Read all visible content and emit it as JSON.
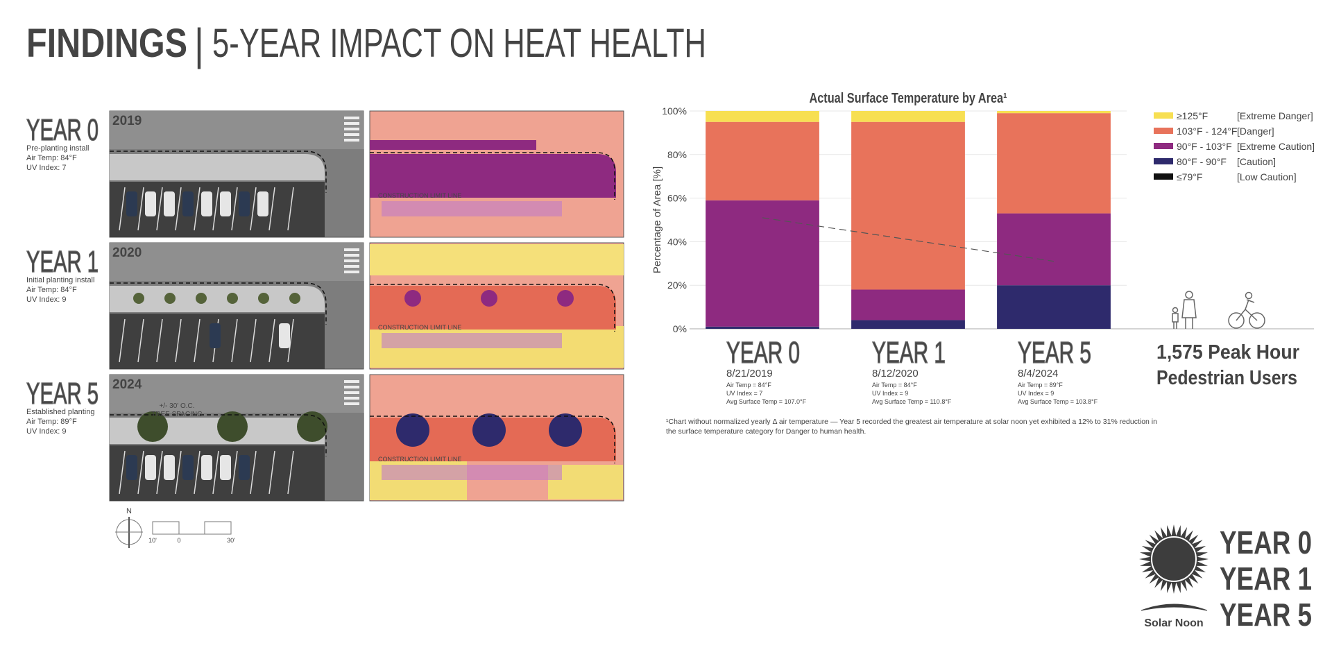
{
  "header": {
    "title_bold": "FINDINGS",
    "separator": "|",
    "title": "5-YEAR IMPACT ON HEAT HEALTH"
  },
  "site_rows": [
    {
      "year": "YEAR 0",
      "photo_year": "2019",
      "phase": "Pre-planting install",
      "air_temp": "Air Temp: 84°F",
      "uv_index": "UV Index: 7",
      "map_label": "CONSTRUCTION LIMIT LINE"
    },
    {
      "year": "YEAR 1",
      "photo_year": "2020",
      "phase": "Initial planting install",
      "air_temp": "Air Temp: 84°F",
      "uv_index": "UV Index: 9",
      "map_label": "CONSTRUCTION LIMIT LINE"
    },
    {
      "year": "YEAR 5",
      "photo_year": "2024",
      "phase": "Established planting",
      "air_temp": "Air Temp: 89°F",
      "uv_index": "UV Index: 9",
      "map_label": "CONSTRUCTION LIMIT LINE",
      "spacing_label": [
        "+/- 30' O.C.",
        "TREE SPACING"
      ]
    }
  ],
  "scale_bar": {
    "north": "N",
    "ticks": [
      "10'",
      "0",
      "30'"
    ]
  },
  "chart_data": {
    "type": "stacked-bar",
    "title": "Actual Surface Temperature by Area¹",
    "y_label": "Percentage of Area [%]",
    "categories": [
      "YEAR 0",
      "YEAR 1",
      "YEAR 5"
    ],
    "category_details": [
      {
        "date": "8/21/2019",
        "lines": [
          "Air Temp = 84°F",
          "UV Index = 7",
          "Avg Surface Temp = 107.0°F"
        ]
      },
      {
        "date": "8/12/2020",
        "lines": [
          "Air Temp = 84°F",
          "UV Index = 9",
          "Avg Surface Temp = 110.8°F"
        ]
      },
      {
        "date": "8/4/2024",
        "lines": [
          "Air Temp = 89°F",
          "UV Index = 9",
          "Avg Surface Temp = 103.8°F"
        ]
      }
    ],
    "series": [
      {
        "name": "≤79°F",
        "level": "[Low Caution]",
        "color": "#111111",
        "values": [
          0,
          0,
          0
        ]
      },
      {
        "name": "80°F - 90°F",
        "level": "[Caution]",
        "color": "#2e2a6c",
        "values": [
          1,
          4,
          20
        ]
      },
      {
        "name": "90°F - 103°F",
        "level": "[Extreme Caution]",
        "color": "#8e2a80",
        "values": [
          58,
          14,
          33
        ]
      },
      {
        "name": "103°F - 124°F",
        "level": "[Danger]",
        "color": "#e8735b",
        "values": [
          36,
          77,
          46
        ]
      },
      {
        "name": "≥125°F",
        "level": "[Extreme Danger]",
        "color": "#f7df52",
        "values": [
          5,
          5,
          1
        ]
      }
    ],
    "trend_values": [
      51,
      41,
      31
    ],
    "ylim": [
      0,
      100
    ],
    "yticks": [
      {
        "value": 0,
        "label": "0%"
      },
      {
        "value": 20,
        "label": "20%"
      },
      {
        "value": 40,
        "label": "40%"
      },
      {
        "value": 60,
        "label": "60%"
      },
      {
        "value": 80,
        "label": "80%"
      },
      {
        "value": 100,
        "label": "100%"
      }
    ],
    "grid": true,
    "legend": "right"
  },
  "footnote": [
    "¹Chart without normalized yearly Δ air temperature — Year 5 recorded the greatest air temperature at solar noon yet exhibited a 12% to 31% reduction in",
    "the surface temperature category for Danger to human health."
  ],
  "pedestrians": [
    "1,575 Peak Hour",
    "Pedestrian Users"
  ],
  "solar_noon": {
    "label": "Solar Noon",
    "years": [
      "YEAR 0",
      "YEAR 1",
      "YEAR 5"
    ]
  }
}
